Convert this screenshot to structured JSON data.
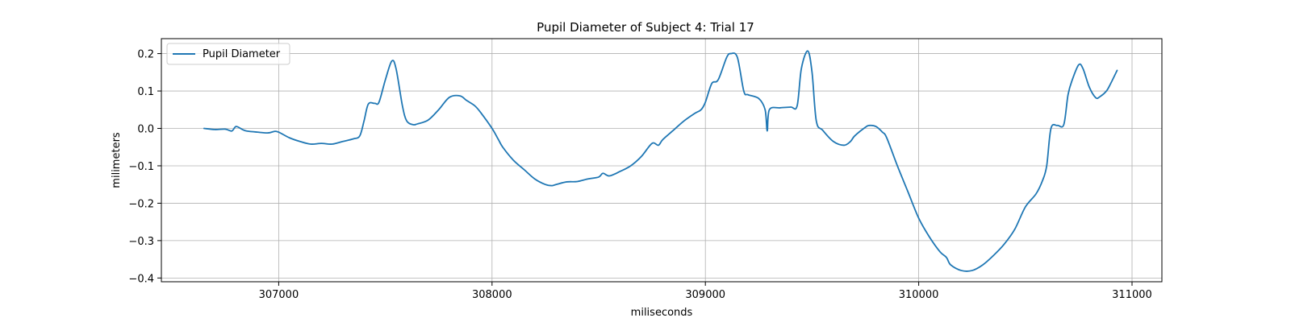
{
  "chart_data": {
    "type": "line",
    "title": "Pupil Diameter of Subject 4: Trial 17",
    "xlabel": "miliseconds",
    "ylabel": "milimeters",
    "xlim": [
      306450,
      311140
    ],
    "ylim": [
      -0.41,
      0.24
    ],
    "xticks": [
      307000,
      308000,
      309000,
      310000,
      311000
    ],
    "yticks": [
      -0.4,
      -0.3,
      -0.2,
      -0.1,
      0.0,
      0.1,
      0.2
    ],
    "xtick_labels": [
      "307000",
      "308000",
      "309000",
      "310000",
      "311000"
    ],
    "ytick_labels": [
      "−0.4",
      "−0.3",
      "−0.2",
      "−0.1",
      "0.0",
      "0.1",
      "0.2"
    ],
    "grid": true,
    "legend": {
      "position": "top-left",
      "entries": [
        "Pupil Diameter"
      ]
    },
    "series": [
      {
        "name": "Pupil Diameter",
        "color": "#1f77b4",
        "x": [
          306650,
          306700,
          306750,
          306780,
          306800,
          306830,
          306850,
          306900,
          306950,
          306980,
          307000,
          307050,
          307100,
          307150,
          307200,
          307250,
          307300,
          307350,
          307380,
          307400,
          307420,
          307450,
          307470,
          307500,
          307530,
          307550,
          307580,
          307600,
          307630,
          307650,
          307700,
          307750,
          307800,
          307850,
          307880,
          307920,
          307950,
          308000,
          308030,
          308050,
          308100,
          308150,
          308200,
          308250,
          308280,
          308300,
          308350,
          308400,
          308450,
          308500,
          308520,
          308550,
          308600,
          308650,
          308700,
          308750,
          308780,
          308800,
          308850,
          308900,
          308950,
          308980,
          309000,
          309030,
          309060,
          309100,
          309120,
          309150,
          309180,
          309200,
          309250,
          309280,
          309290,
          309300,
          309350,
          309400,
          309430,
          309450,
          309480,
          309500,
          309520,
          309550,
          309600,
          309650,
          309680,
          309700,
          309750,
          309770,
          309800,
          309830,
          309850,
          309900,
          309950,
          310000,
          310050,
          310100,
          310130,
          310150,
          310200,
          310250,
          310300,
          310350,
          310400,
          310450,
          310500,
          310550,
          310580,
          310600,
          310620,
          310650,
          310680,
          310700,
          310720,
          310750,
          310770,
          310800,
          310830,
          310850,
          310880,
          310900,
          310930
        ],
        "values": [
          0.0,
          -0.003,
          -0.002,
          -0.007,
          0.005,
          -0.003,
          -0.007,
          -0.01,
          -0.012,
          -0.008,
          -0.01,
          -0.025,
          -0.035,
          -0.042,
          -0.04,
          -0.042,
          -0.035,
          -0.028,
          -0.02,
          0.02,
          0.065,
          0.067,
          0.07,
          0.13,
          0.18,
          0.16,
          0.06,
          0.02,
          0.01,
          0.012,
          0.022,
          0.05,
          0.083,
          0.087,
          0.075,
          0.06,
          0.04,
          0.0,
          -0.03,
          -0.05,
          -0.085,
          -0.11,
          -0.135,
          -0.15,
          -0.153,
          -0.15,
          -0.143,
          -0.142,
          -0.135,
          -0.13,
          -0.12,
          -0.127,
          -0.115,
          -0.1,
          -0.075,
          -0.04,
          -0.045,
          -0.03,
          -0.005,
          0.02,
          0.04,
          0.05,
          0.07,
          0.12,
          0.13,
          0.19,
          0.2,
          0.19,
          0.1,
          0.09,
          0.08,
          0.05,
          -0.007,
          0.05,
          0.055,
          0.057,
          0.06,
          0.16,
          0.207,
          0.15,
          0.02,
          -0.005,
          -0.035,
          -0.045,
          -0.035,
          -0.02,
          0.003,
          0.008,
          0.005,
          -0.01,
          -0.025,
          -0.1,
          -0.17,
          -0.24,
          -0.29,
          -0.33,
          -0.345,
          -0.365,
          -0.38,
          -0.38,
          -0.365,
          -0.34,
          -0.31,
          -0.27,
          -0.21,
          -0.175,
          -0.14,
          -0.1,
          0.0,
          0.008,
          0.01,
          0.09,
          0.13,
          0.17,
          0.16,
          0.11,
          0.082,
          0.085,
          0.1,
          0.12,
          0.155
        ]
      }
    ]
  }
}
